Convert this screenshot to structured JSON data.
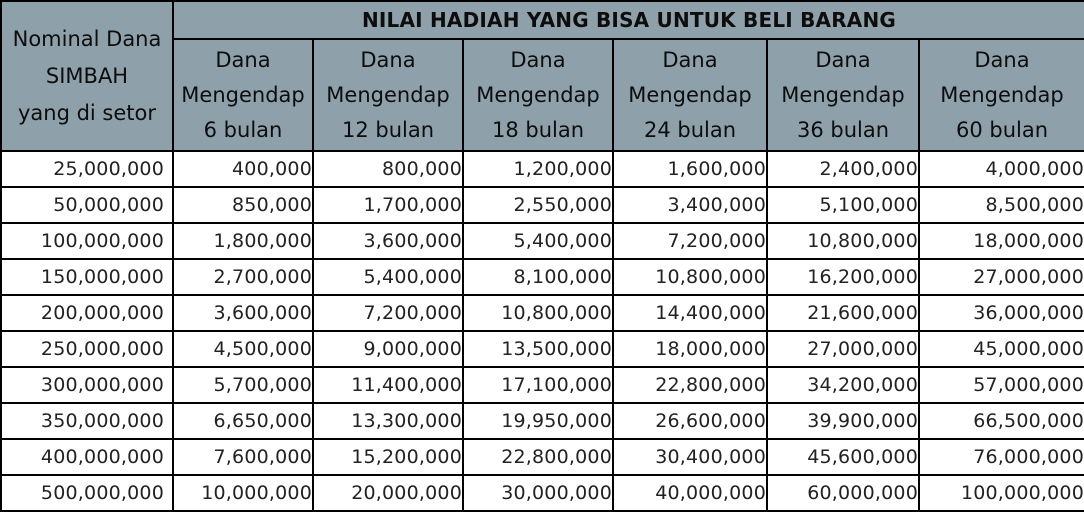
{
  "table": {
    "nominal_header": [
      "Nominal Dana",
      "SIMBAH",
      "yang di setor"
    ],
    "group_header": "NILAI HADIAH YANG BISA UNTUK BELI BARANG",
    "columns": [
      [
        "Dana",
        "Mengendap",
        "6 bulan"
      ],
      [
        "Dana",
        "Mengendap",
        "12 bulan"
      ],
      [
        "Dana",
        "Mengendap",
        "18 bulan"
      ],
      [
        "Dana",
        "Mengendap",
        "24 bulan"
      ],
      [
        "Dana",
        "Mengendap",
        "36 bulan"
      ],
      [
        "Dana",
        "Mengendap",
        "60 bulan"
      ]
    ],
    "rows": [
      [
        "25,000,000",
        "400,000",
        "800,000",
        "1,200,000",
        "1,600,000",
        "2,400,000",
        "4,000,000"
      ],
      [
        "50,000,000",
        "850,000",
        "1,700,000",
        "2,550,000",
        "3,400,000",
        "5,100,000",
        "8,500,000"
      ],
      [
        "100,000,000",
        "1,800,000",
        "3,600,000",
        "5,400,000",
        "7,200,000",
        "10,800,000",
        "18,000,000"
      ],
      [
        "150,000,000",
        "2,700,000",
        "5,400,000",
        "8,100,000",
        "10,800,000",
        "16,200,000",
        "27,000,000"
      ],
      [
        "200,000,000",
        "3,600,000",
        "7,200,000",
        "10,800,000",
        "14,400,000",
        "21,600,000",
        "36,000,000"
      ],
      [
        "250,000,000",
        "4,500,000",
        "9,000,000",
        "13,500,000",
        "18,000,000",
        "27,000,000",
        "45,000,000"
      ],
      [
        "300,000,000",
        "5,700,000",
        "11,400,000",
        "17,100,000",
        "22,800,000",
        "34,200,000",
        "57,000,000"
      ],
      [
        "350,000,000",
        "6,650,000",
        "13,300,000",
        "19,950,000",
        "26,600,000",
        "39,900,000",
        "66,500,000"
      ],
      [
        "400,000,000",
        "7,600,000",
        "15,200,000",
        "22,800,000",
        "30,400,000",
        "45,600,000",
        "76,000,000"
      ],
      [
        "500,000,000",
        "10,000,000",
        "20,000,000",
        "30,000,000",
        "40,000,000",
        "60,000,000",
        "100,000,000"
      ]
    ]
  },
  "colors": {
    "header_fill": "#8ea1ab",
    "border": "#000000",
    "cell_fill": "#ffffff",
    "text": "#222222"
  }
}
